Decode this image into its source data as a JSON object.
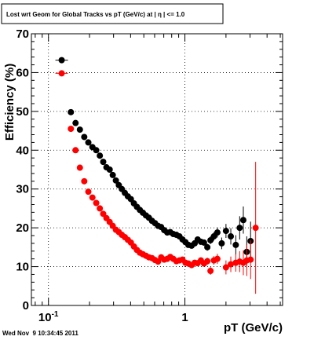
{
  "chart_data": {
    "type": "scatter",
    "title": "Lost wrt Geom for Global Tracks vs pT (GeV/c) at |  η | <= 1.0",
    "xlabel": "pT (GeV/c)",
    "ylabel": "Efficiency (%)",
    "x_scale": "log",
    "xlim": [
      0.075,
      5.2
    ],
    "ylim": [
      0,
      70
    ],
    "x_tick_labels": [
      {
        "value": 0.1,
        "base": "10",
        "exp": "-1"
      },
      {
        "value": 1,
        "base": "1",
        "exp": ""
      }
    ],
    "y_ticks": [
      0,
      10,
      20,
      30,
      40,
      50,
      60,
      70
    ],
    "grid": true,
    "series": [
      {
        "color": "#000000",
        "points": [
          [
            0.125,
            63.2,
            0.5
          ],
          [
            0.146,
            49.8,
            0.5
          ],
          [
            0.158,
            47.0,
            0.5
          ],
          [
            0.17,
            45.3,
            0.5
          ],
          [
            0.183,
            43.4,
            0.5
          ],
          [
            0.196,
            42.0,
            0.5
          ],
          [
            0.21,
            40.8,
            0.5
          ],
          [
            0.224,
            40.0,
            0.5
          ],
          [
            0.238,
            38.6,
            0.5
          ],
          [
            0.252,
            37.0,
            0.5
          ],
          [
            0.266,
            35.6,
            0.5
          ],
          [
            0.281,
            35.0,
            0.5
          ],
          [
            0.296,
            33.6,
            0.5
          ],
          [
            0.312,
            32.2,
            0.5
          ],
          [
            0.328,
            31.0,
            0.5
          ],
          [
            0.345,
            30.0,
            0.5
          ],
          [
            0.363,
            29.0,
            0.5
          ],
          [
            0.382,
            28.1,
            0.5
          ],
          [
            0.402,
            27.4,
            0.5
          ],
          [
            0.423,
            26.3,
            0.5
          ],
          [
            0.445,
            25.4,
            0.5
          ],
          [
            0.468,
            24.6,
            0.5
          ],
          [
            0.492,
            23.9,
            0.5
          ],
          [
            0.518,
            23.2,
            0.5
          ],
          [
            0.545,
            22.6,
            0.5
          ],
          [
            0.574,
            21.8,
            0.5
          ],
          [
            0.604,
            21.2,
            0.5
          ],
          [
            0.636,
            20.5,
            0.5
          ],
          [
            0.67,
            20.2,
            0.5
          ],
          [
            0.705,
            19.4,
            0.5
          ],
          [
            0.742,
            18.8,
            0.5
          ],
          [
            0.781,
            18.9,
            0.5
          ],
          [
            0.822,
            18.4,
            0.5
          ],
          [
            0.866,
            18.2,
            0.5
          ],
          [
            0.912,
            17.8,
            0.5
          ],
          [
            0.96,
            17.0,
            0.5
          ],
          [
            1.01,
            16.3,
            0.5
          ],
          [
            1.06,
            15.6,
            0.6
          ],
          [
            1.12,
            15.4,
            0.6
          ],
          [
            1.18,
            16.0,
            0.6
          ],
          [
            1.24,
            17.0,
            0.7
          ],
          [
            1.31,
            16.4,
            0.7
          ],
          [
            1.38,
            16.2,
            0.8
          ],
          [
            1.46,
            15.0,
            0.9
          ],
          [
            1.54,
            16.8,
            1.0
          ],
          [
            1.63,
            17.8,
            1.1
          ],
          [
            1.73,
            18.8,
            1.3
          ],
          [
            1.86,
            16.0,
            1.5
          ],
          [
            2.0,
            19.2,
            1.8
          ],
          [
            2.17,
            17.8,
            2.1
          ],
          [
            2.36,
            15.6,
            2.5
          ],
          [
            2.52,
            20.0,
            3.0
          ],
          [
            2.68,
            22.0,
            3.5
          ],
          [
            2.84,
            13.8,
            4.0
          ],
          [
            3.03,
            16.6,
            5.0
          ]
        ]
      },
      {
        "color": "#ff0000",
        "points": [
          [
            0.125,
            59.8,
            0.5
          ],
          [
            0.146,
            45.5,
            0.5
          ],
          [
            0.158,
            40.0,
            0.5
          ],
          [
            0.17,
            35.5,
            0.5
          ],
          [
            0.183,
            32.0,
            0.5
          ],
          [
            0.196,
            29.3,
            0.5
          ],
          [
            0.21,
            27.8,
            0.5
          ],
          [
            0.224,
            26.4,
            0.5
          ],
          [
            0.238,
            25.0,
            0.5
          ],
          [
            0.252,
            23.6,
            0.5
          ],
          [
            0.266,
            22.5,
            0.5
          ],
          [
            0.281,
            21.5,
            0.5
          ],
          [
            0.296,
            20.5,
            0.5
          ],
          [
            0.312,
            19.5,
            0.5
          ],
          [
            0.328,
            18.9,
            0.5
          ],
          [
            0.345,
            18.2,
            0.5
          ],
          [
            0.363,
            17.6,
            0.5
          ],
          [
            0.382,
            16.9,
            0.5
          ],
          [
            0.402,
            16.2,
            0.5
          ],
          [
            0.423,
            15.2,
            0.5
          ],
          [
            0.445,
            14.3,
            0.5
          ],
          [
            0.468,
            13.6,
            0.5
          ],
          [
            0.492,
            13.2,
            0.5
          ],
          [
            0.518,
            12.8,
            0.5
          ],
          [
            0.545,
            12.4,
            0.5
          ],
          [
            0.574,
            12.2,
            0.5
          ],
          [
            0.604,
            11.7,
            0.5
          ],
          [
            0.636,
            11.3,
            0.5
          ],
          [
            0.67,
            12.4,
            0.5
          ],
          [
            0.705,
            11.8,
            0.5
          ],
          [
            0.742,
            12.0,
            0.5
          ],
          [
            0.781,
            12.5,
            0.5
          ],
          [
            0.822,
            12.0,
            0.5
          ],
          [
            0.866,
            11.4,
            0.5
          ],
          [
            0.912,
            11.6,
            0.5
          ],
          [
            0.96,
            11.8,
            0.5
          ],
          [
            1.01,
            11.0,
            0.5
          ],
          [
            1.06,
            10.8,
            0.6
          ],
          [
            1.12,
            10.4,
            0.6
          ],
          [
            1.18,
            11.0,
            0.6
          ],
          [
            1.24,
            10.9,
            0.7
          ],
          [
            1.31,
            11.6,
            0.7
          ],
          [
            1.38,
            10.8,
            0.8
          ],
          [
            1.46,
            11.4,
            0.9
          ],
          [
            1.54,
            8.9,
            1.0
          ],
          [
            1.63,
            11.6,
            1.1
          ],
          [
            1.73,
            12.0,
            1.3
          ],
          [
            2.0,
            9.8,
            1.8
          ],
          [
            2.17,
            10.6,
            2.0
          ],
          [
            2.36,
            11.0,
            2.3
          ],
          [
            2.52,
            11.3,
            2.7
          ],
          [
            2.68,
            11.0,
            3.2
          ],
          [
            2.84,
            11.6,
            4.0
          ],
          [
            3.03,
            11.8,
            5.0
          ],
          [
            3.3,
            20.0,
            17.0
          ]
        ]
      }
    ]
  },
  "timestamp": "Wed Nov  9 10:34:45 2011"
}
